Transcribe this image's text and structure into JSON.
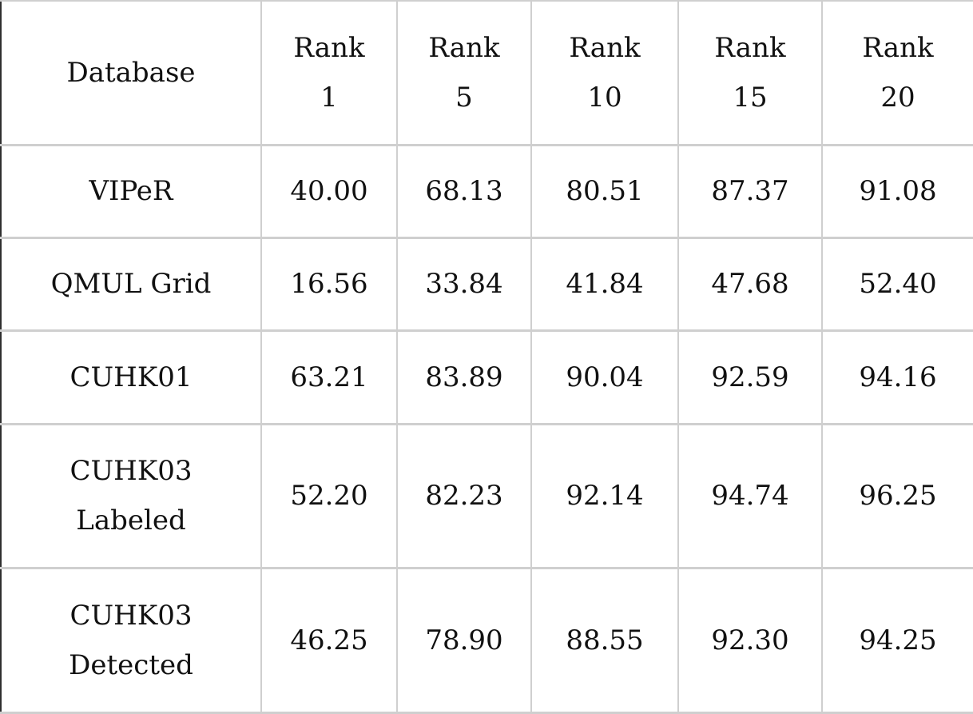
{
  "table": {
    "header": {
      "database": "Database",
      "ranks": [
        {
          "word": "Rank",
          "num": "1"
        },
        {
          "word": "Rank",
          "num": "5"
        },
        {
          "word": "Rank",
          "num": "10"
        },
        {
          "word": "Rank",
          "num": "15"
        },
        {
          "word": "Rank",
          "num": "20"
        }
      ]
    },
    "rows": [
      {
        "name": [
          "VIPeR"
        ],
        "values": [
          "40.00",
          "68.13",
          "80.51",
          "87.37",
          "91.08"
        ]
      },
      {
        "name": [
          "QMUL Grid"
        ],
        "values": [
          "16.56",
          "33.84",
          "41.84",
          "47.68",
          "52.40"
        ]
      },
      {
        "name": [
          "CUHK01"
        ],
        "values": [
          "63.21",
          "83.89",
          "90.04",
          "92.59",
          "94.16"
        ]
      },
      {
        "name": [
          "CUHK03",
          "Labeled"
        ],
        "values": [
          "52.20",
          "82.23",
          "92.14",
          "94.74",
          "96.25"
        ]
      },
      {
        "name": [
          "CUHK03",
          "Detected"
        ],
        "values": [
          "46.25",
          "78.90",
          "88.55",
          "92.30",
          "94.25"
        ]
      }
    ]
  }
}
